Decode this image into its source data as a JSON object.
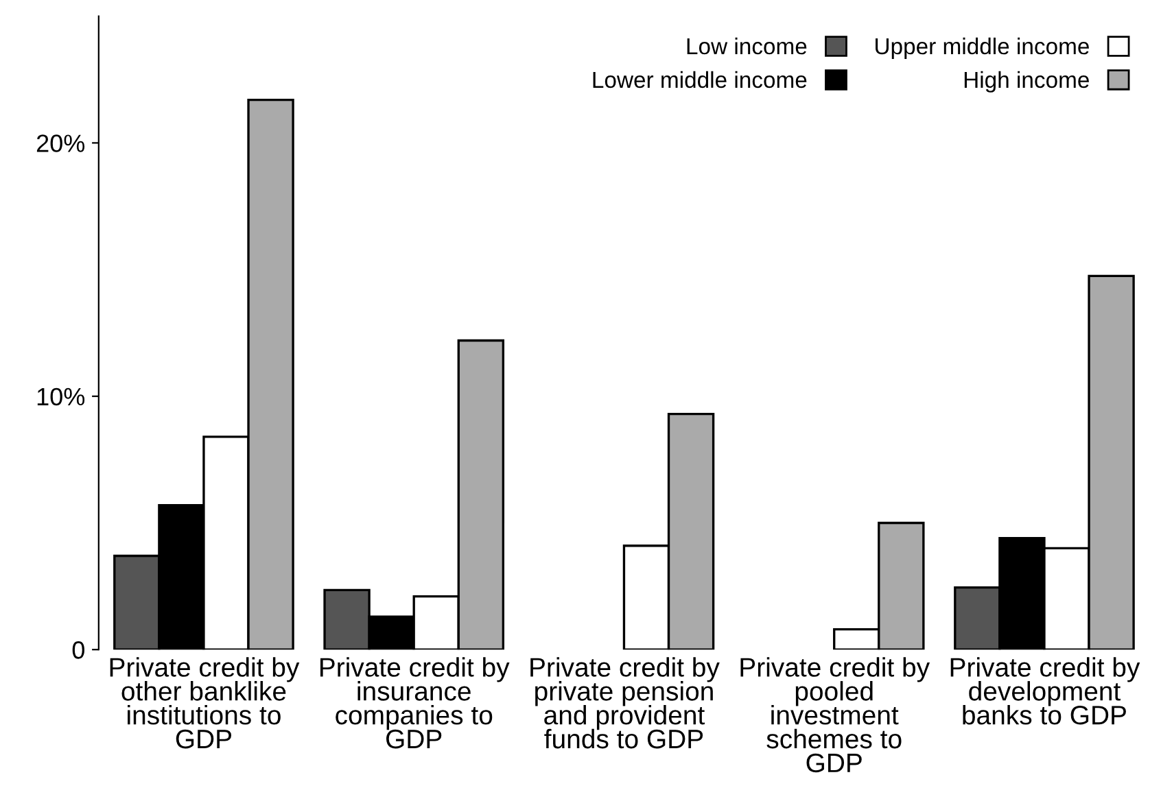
{
  "chart_data": {
    "type": "bar",
    "categories": [
      "Private credit by other banklike institutions to GDP",
      "Private credit by insurance companies to GDP",
      "Private credit by private pension and provident funds to GDP",
      "Private credit by pooled investment schemes to GDP",
      "Private credit by development banks to GDP"
    ],
    "series": [
      {
        "name": "Low income",
        "color": "#555555",
        "values": [
          3.7,
          2.35,
          null,
          null,
          2.45
        ]
      },
      {
        "name": "Lower middle income",
        "color": "#000000",
        "values": [
          5.7,
          1.3,
          null,
          null,
          4.4
        ]
      },
      {
        "name": "Upper middle income",
        "color": "#ffffff",
        "values": [
          8.4,
          2.1,
          4.1,
          0.8,
          4.0
        ]
      },
      {
        "name": "High income",
        "color": "#aaaaaa",
        "values": [
          21.7,
          12.2,
          9.3,
          5.0,
          14.75
        ]
      }
    ],
    "ylim": [
      0,
      25
    ],
    "yticks": [
      0,
      {
        "value": 10,
        "label": "10%"
      },
      {
        "value": 20,
        "label": "20%"
      }
    ],
    "grid": false,
    "legend": "top right"
  }
}
